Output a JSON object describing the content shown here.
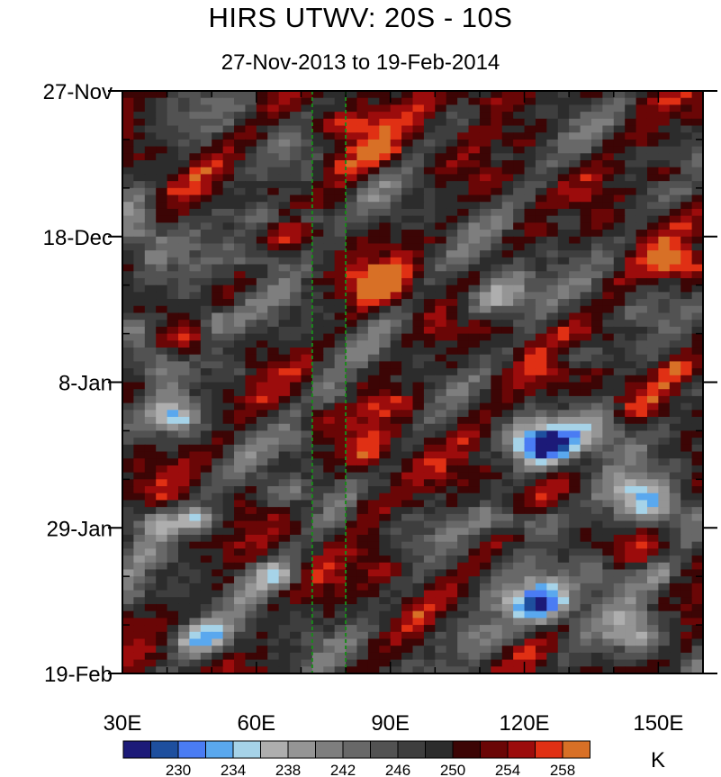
{
  "title": "HIRS UTWV: 20S - 10S",
  "subtitle": "27-Nov-2013 to 19-Feb-2014",
  "chart_data": {
    "type": "heatmap",
    "title": "HIRS UTWV: 20S - 10S",
    "subtitle": "27-Nov-2013 to 19-Feb-2014",
    "x_range_deg_east": [
      30,
      160
    ],
    "y_range": [
      "27-Nov-2013",
      "19-Feb-2014"
    ],
    "y_total_days": 84,
    "x_ticks": [
      {
        "label": "30E",
        "value": 30
      },
      {
        "label": "60E",
        "value": 60
      },
      {
        "label": "90E",
        "value": 90
      },
      {
        "label": "120E",
        "value": 120
      },
      {
        "label": "150E",
        "value": 150
      }
    ],
    "x_minor_step": 10,
    "y_ticks": [
      {
        "label": "27-Nov",
        "day": 0
      },
      {
        "label": "18-Dec",
        "day": 21
      },
      {
        "label": "8-Jan",
        "day": 42
      },
      {
        "label": "29-Jan",
        "day": 63
      },
      {
        "label": "19-Feb",
        "day": 84
      }
    ],
    "y_minor_step_days": 7,
    "reference_lines_lon": [
      72.5,
      80
    ],
    "reference_line_color": "#1a8a1a",
    "colorbar": {
      "unit": "K",
      "colors": [
        "#1c1a78",
        "#1e4f9e",
        "#4a7cf3",
        "#5aa8ee",
        "#a6d3e8",
        "#aeaeae",
        "#959595",
        "#7e7e7e",
        "#686868",
        "#525252",
        "#3e3e3e",
        "#2c2c2c",
        "#3c0505",
        "#6a0606",
        "#9c0c0c",
        "#e03014",
        "#d87026"
      ],
      "labels": [
        "230",
        "234",
        "238",
        "242",
        "246",
        "250",
        "254",
        "258"
      ],
      "label_after_box": [
        1,
        3,
        5,
        7,
        9,
        11,
        13,
        15
      ]
    },
    "field": {
      "base_level": 11.0,
      "anomalies": [
        {
          "lon": 112,
          "day": 1,
          "dlon": 7,
          "dday": 2,
          "amp": 5.2
        },
        {
          "lon": 80,
          "day": 5,
          "dlon": 9,
          "dday": 2,
          "amp": 4.0
        },
        {
          "lon": 86,
          "day": 9,
          "dlon": 7,
          "dday": 2,
          "amp": 4.3
        },
        {
          "lon": 78,
          "day": 11,
          "dlon": 5,
          "dday": 2,
          "amp": 3.2
        },
        {
          "lon": 152,
          "day": 12,
          "dlon": 6,
          "dday": 1.5,
          "amp": 3.6
        },
        {
          "lon": 148,
          "day": 7,
          "dlon": 5,
          "dday": 1.2,
          "amp": 2.5
        },
        {
          "lon": 88,
          "day": 28,
          "dlon": 7,
          "dday": 3,
          "amp": 5.0
        },
        {
          "lon": 154,
          "day": 25,
          "dlon": 6,
          "dday": 2,
          "amp": 5.0
        },
        {
          "lon": 154,
          "day": 40,
          "dlon": 4,
          "dday": 1.2,
          "amp": 3.0
        },
        {
          "lon": 140,
          "day": 35,
          "dlon": 8,
          "dday": 1.3,
          "amp": 1.6
        },
        {
          "lon": 90,
          "day": 45,
          "dlon": 8,
          "dday": 1.5,
          "amp": 2.7
        },
        {
          "lon": 86,
          "day": 53,
          "dlon": 5,
          "dday": 4,
          "amp": 3.6
        },
        {
          "lon": 85,
          "day": 60,
          "dlon": 5,
          "dday": 2,
          "amp": 2.5
        },
        {
          "lon": 90,
          "day": 69,
          "dlon": 5,
          "dday": 1.2,
          "amp": 2.7
        },
        {
          "lon": 120,
          "day": 41,
          "dlon": 20,
          "dday": 4,
          "amp": 1.0
        },
        {
          "lon": 72,
          "day": 18,
          "dlon": 4,
          "dday": 1.2,
          "amp": -6.2
        },
        {
          "lon": 115,
          "day": 29,
          "dlon": 6,
          "dday": 3,
          "amp": -6.5
        },
        {
          "lon": 109,
          "day": 31,
          "dlon": 5,
          "dday": 2,
          "amp": -4.0
        },
        {
          "lon": 125,
          "day": 51,
          "dlon": 8,
          "dday": 3,
          "amp": -10.0
        },
        {
          "lon": 138,
          "day": 49,
          "dlon": 6,
          "dday": 3,
          "amp": -6.0
        },
        {
          "lon": 124,
          "day": 74,
          "dlon": 8,
          "dday": 3,
          "amp": -9.0
        },
        {
          "lon": 138,
          "day": 70,
          "dlon": 6,
          "dday": 3,
          "amp": -5.5
        },
        {
          "lon": 120,
          "day": 62,
          "dlon": 10,
          "dday": 2,
          "amp": -5.5
        },
        {
          "lon": 150,
          "day": 61,
          "dlon": 8,
          "dday": 2.5,
          "amp": -5.5
        },
        {
          "lon": 145,
          "day": 58,
          "dlon": 8,
          "dday": 2.5,
          "amp": -4.5
        },
        {
          "lon": 38,
          "day": 39,
          "dlon": 5,
          "dday": 2.5,
          "amp": -6.5
        },
        {
          "lon": 42,
          "day": 47,
          "dlon": 5,
          "dday": 2,
          "amp": -6.0
        },
        {
          "lon": 50,
          "day": 33,
          "dlon": 5,
          "dday": 2,
          "amp": -5.0
        },
        {
          "lon": 34,
          "day": 20,
          "dlon": 5,
          "dday": 4,
          "amp": -4.5
        },
        {
          "lon": 32,
          "day": 34,
          "dlon": 4,
          "dday": 2,
          "amp": -4.5
        },
        {
          "lon": 36,
          "day": 62,
          "dlon": 6,
          "dday": 2.5,
          "amp": -5.0
        },
        {
          "lon": 48,
          "day": 62,
          "dlon": 6,
          "dday": 2,
          "amp": -5.5
        },
        {
          "lon": 64,
          "day": 70,
          "dlon": 6,
          "dday": 2,
          "amp": -5.5
        },
        {
          "lon": 48,
          "day": 79,
          "dlon": 8,
          "dday": 2.5,
          "amp": -6.0
        },
        {
          "lon": 66,
          "day": 58,
          "dlon": 6,
          "dday": 2,
          "amp": -4.0
        },
        {
          "lon": 60,
          "day": 24,
          "dlon": 6,
          "dday": 2,
          "amp": -4.0
        },
        {
          "lon": 78,
          "day": 44,
          "dlon": 5,
          "dday": 2,
          "amp": -4.0
        },
        {
          "lon": 60,
          "day": 18,
          "dlon": 6,
          "dday": 2,
          "amp": -3.5
        },
        {
          "lon": 116,
          "day": 10,
          "dlon": 5,
          "dday": 2,
          "amp": -3.0
        },
        {
          "lon": 128,
          "day": 18,
          "dlon": 5,
          "dday": 2,
          "amp": -3.0
        },
        {
          "lon": 132,
          "day": 38,
          "dlon": 6,
          "dday": 2,
          "amp": -3.5
        },
        {
          "lon": 70,
          "day": 50,
          "dlon": 4,
          "dday": 2,
          "amp": -3.0
        },
        {
          "lon": 110,
          "day": 79,
          "dlon": 8,
          "dday": 3,
          "amp": -4.5
        },
        {
          "lon": 145,
          "day": 78,
          "dlon": 6,
          "dday": 3,
          "amp": -4.0
        },
        {
          "lon": 32,
          "day": 73,
          "dlon": 3,
          "dday": 2,
          "amp": -3.5
        },
        {
          "lon": 55,
          "day": 40,
          "dlon": 4,
          "dday": 2,
          "amp": -3.0
        },
        {
          "lon": 150,
          "day": 70,
          "dlon": 5,
          "dday": 2,
          "amp": -3.5
        }
      ]
    }
  }
}
